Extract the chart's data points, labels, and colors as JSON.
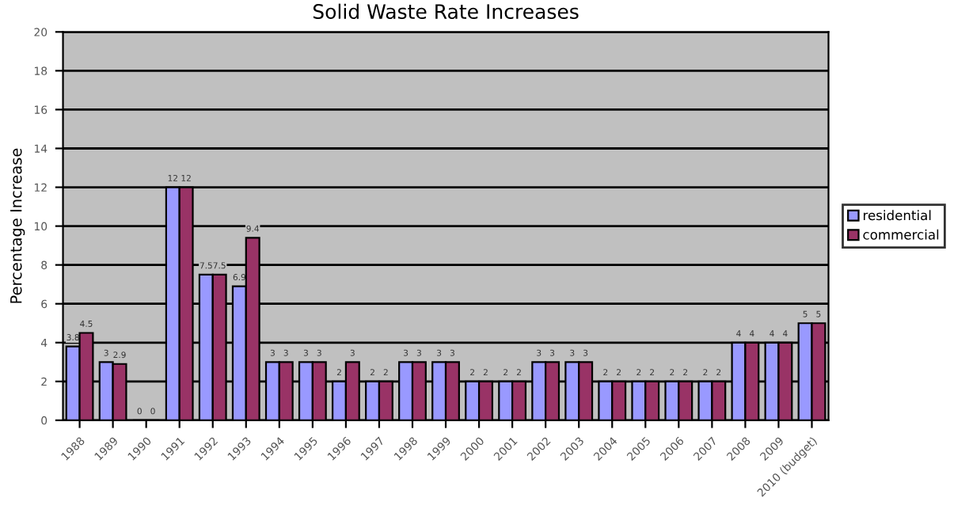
{
  "chart_data": {
    "type": "bar",
    "title": "Solid Waste Rate Increases",
    "ylabel": "Percentage Increase",
    "categories": [
      "1988",
      "1989",
      "1990",
      "1991",
      "1992",
      "1993",
      "1994",
      "1995",
      "1996",
      "1997",
      "1998",
      "1999",
      "2000",
      "2001",
      "2002",
      "2003",
      "2004",
      "2005",
      "2006",
      "2007",
      "2008",
      "2009",
      "2010 (budget)"
    ],
    "series": [
      {
        "name": "residential",
        "color": "#9999ff",
        "values": [
          3.8,
          3,
          0,
          12,
          7.5,
          6.9,
          3,
          3,
          2,
          2,
          3,
          3,
          2,
          2,
          3,
          3,
          2,
          2,
          2,
          2,
          4,
          4,
          5
        ]
      },
      {
        "name": "commercial",
        "color": "#993366",
        "values": [
          4.5,
          2.9,
          0,
          12,
          7.5,
          9.4,
          3,
          3,
          3,
          2,
          3,
          3,
          2,
          2,
          3,
          3,
          2,
          2,
          2,
          2,
          4,
          4,
          5
        ]
      }
    ],
    "ylim": [
      0,
      20
    ],
    "yticks": [
      0,
      2,
      4,
      6,
      8,
      10,
      12,
      14,
      16,
      18,
      20
    ],
    "grid": "y",
    "legend": "right",
    "data_labels": true
  }
}
